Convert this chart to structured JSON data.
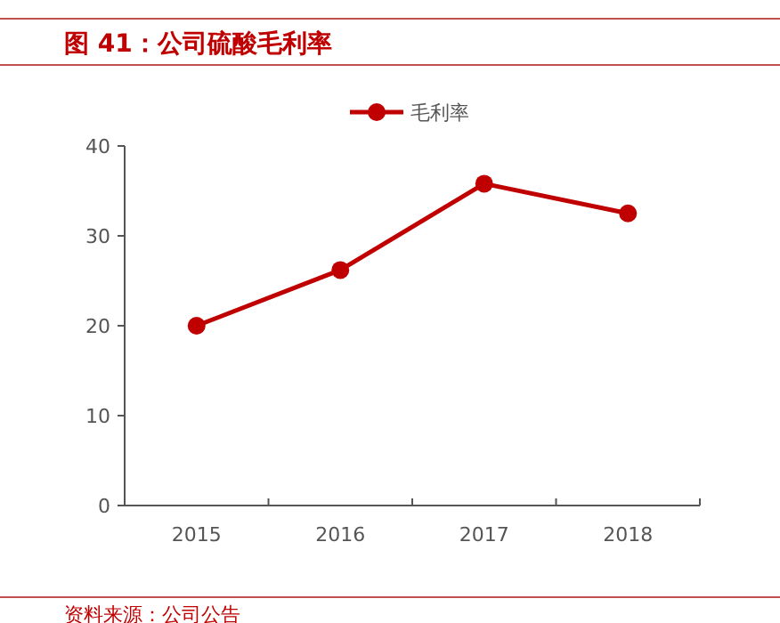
{
  "chart_data": {
    "type": "line",
    "title": "图 41：公司硫酸毛利率",
    "categories": [
      "2015",
      "2016",
      "2017",
      "2018"
    ],
    "series": [
      {
        "name": "毛利率",
        "color": "#c00000",
        "values": [
          20,
          26.2,
          35.8,
          32.5
        ]
      }
    ],
    "ylim": [
      0,
      40
    ],
    "yticks": [
      0,
      10,
      20,
      30,
      40
    ],
    "grid": false,
    "legend": "top",
    "marker": "circle",
    "line_style": "solid",
    "annotations": [
      "资料来源：公司公告"
    ]
  }
}
